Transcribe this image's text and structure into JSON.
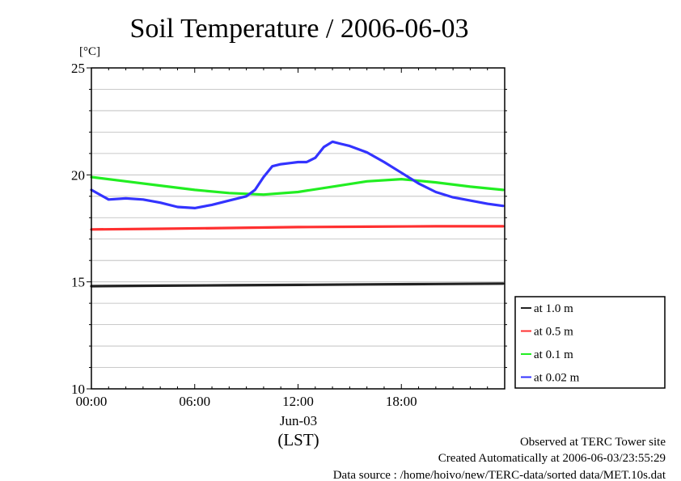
{
  "chart_data": {
    "type": "line",
    "title": "Soil Temperature / 2006-06-03",
    "ylabel": "[°C]",
    "ylim": [
      10,
      25
    ],
    "y_ticks": [
      "10",
      "15",
      "20",
      "25"
    ],
    "x_range_hours": [
      0,
      24
    ],
    "x_ticks": [
      {
        "hour": 0,
        "label": "00:00"
      },
      {
        "hour": 6,
        "label": "06:00"
      },
      {
        "hour": 12,
        "label": "12:00"
      },
      {
        "hour": 18,
        "label": "18:00"
      }
    ],
    "x_date_label": "Jun-03",
    "x_tz_label": "(LST)",
    "grid": true,
    "legend_position": "right",
    "series": [
      {
        "name": "at 1.0 m",
        "color": "#222222",
        "points": [
          [
            0,
            14.8
          ],
          [
            4,
            14.82
          ],
          [
            8,
            14.84
          ],
          [
            12,
            14.86
          ],
          [
            16,
            14.88
          ],
          [
            20,
            14.9
          ],
          [
            23.9,
            14.92
          ]
        ]
      },
      {
        "name": "at 0.5 m",
        "color": "#ff3030",
        "points": [
          [
            0,
            17.45
          ],
          [
            4,
            17.48
          ],
          [
            8,
            17.52
          ],
          [
            12,
            17.56
          ],
          [
            16,
            17.58
          ],
          [
            20,
            17.6
          ],
          [
            23.9,
            17.6
          ]
        ]
      },
      {
        "name": "at 0.1 m",
        "color": "#22ee22",
        "points": [
          [
            0,
            19.9
          ],
          [
            2,
            19.7
          ],
          [
            4,
            19.5
          ],
          [
            6,
            19.3
          ],
          [
            8,
            19.15
          ],
          [
            10,
            19.08
          ],
          [
            12,
            19.2
          ],
          [
            14,
            19.45
          ],
          [
            16,
            19.7
          ],
          [
            18,
            19.8
          ],
          [
            20,
            19.65
          ],
          [
            22,
            19.45
          ],
          [
            23.9,
            19.3
          ]
        ]
      },
      {
        "name": "at 0.02 m",
        "color": "#3333ff",
        "points": [
          [
            0,
            19.3
          ],
          [
            1,
            18.85
          ],
          [
            2,
            18.9
          ],
          [
            3,
            18.85
          ],
          [
            4,
            18.7
          ],
          [
            5,
            18.5
          ],
          [
            6,
            18.45
          ],
          [
            7,
            18.6
          ],
          [
            8,
            18.8
          ],
          [
            9,
            19.0
          ],
          [
            9.5,
            19.3
          ],
          [
            10,
            19.9
          ],
          [
            10.5,
            20.4
          ],
          [
            11,
            20.5
          ],
          [
            11.5,
            20.55
          ],
          [
            12,
            20.6
          ],
          [
            12.5,
            20.6
          ],
          [
            13,
            20.8
          ],
          [
            13.5,
            21.3
          ],
          [
            14,
            21.55
          ],
          [
            14.5,
            21.45
          ],
          [
            15,
            21.35
          ],
          [
            16,
            21.05
          ],
          [
            17,
            20.6
          ],
          [
            18,
            20.1
          ],
          [
            19,
            19.6
          ],
          [
            20,
            19.2
          ],
          [
            21,
            18.95
          ],
          [
            22,
            18.8
          ],
          [
            23,
            18.65
          ],
          [
            23.9,
            18.55
          ]
        ]
      }
    ]
  },
  "footer": {
    "line1": "Observed at TERC Tower site",
    "line2": "Created Automatically at 2006-06-03/23:55:29",
    "line3": "Data source : /home/hoivo/new/TERC-data/sorted  data/MET.10s.dat"
  }
}
